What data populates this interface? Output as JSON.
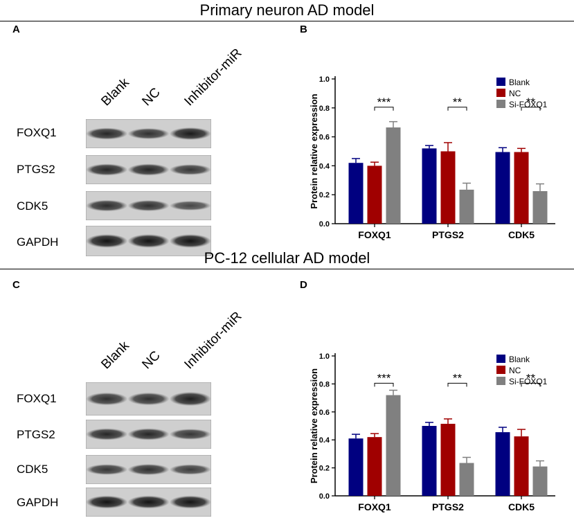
{
  "sections": [
    {
      "title": "Primary neuron AD model"
    },
    {
      "title": "PC-12 cellular AD model"
    }
  ],
  "panels": {
    "A": "A",
    "B": "B",
    "C": "C",
    "D": "D"
  },
  "blots": [
    {
      "lanes": [
        "Blank",
        "NC",
        "Inhibitor-miR"
      ],
      "rows": [
        "FOXQ1",
        "PTGS2",
        "CDK5",
        "GAPDH"
      ],
      "band_intensity": [
        [
          0.75,
          0.65,
          0.85
        ],
        [
          0.75,
          0.75,
          0.6
        ],
        [
          0.7,
          0.65,
          0.45
        ],
        [
          0.9,
          0.9,
          0.9
        ]
      ]
    },
    {
      "lanes": [
        "Blank",
        "NC",
        "Inhibitor-miR"
      ],
      "rows": [
        "FOXQ1",
        "PTGS2",
        "CDK5",
        "GAPDH"
      ],
      "band_intensity": [
        [
          0.65,
          0.65,
          0.8
        ],
        [
          0.75,
          0.75,
          0.6
        ],
        [
          0.6,
          0.65,
          0.55
        ],
        [
          0.9,
          0.9,
          0.9
        ]
      ]
    }
  ],
  "chart_data": [
    {
      "type": "bar",
      "categories": [
        "FOXQ1",
        "PTGS2",
        "CDK5"
      ],
      "series": [
        {
          "name": "Blank",
          "values": [
            0.42,
            0.52,
            0.495
          ],
          "errors": [
            0.03,
            0.02,
            0.03
          ],
          "color": "#000080"
        },
        {
          "name": "NC",
          "values": [
            0.4,
            0.5,
            0.495
          ],
          "errors": [
            0.025,
            0.06,
            0.025
          ],
          "color": "#a00000"
        },
        {
          "name": "Si-FOXQ1",
          "values": [
            0.665,
            0.235,
            0.225
          ],
          "errors": [
            0.04,
            0.045,
            0.05
          ],
          "color": "#808080"
        }
      ],
      "significance": [
        {
          "category": "FOXQ1",
          "label": "***"
        },
        {
          "category": "PTGS2",
          "label": "**"
        },
        {
          "category": "CDK5",
          "label": "**"
        }
      ],
      "xlabel": "",
      "ylabel": "Protein relative expression",
      "ylim": [
        0,
        1.0
      ],
      "yticks": [
        "0.0",
        "0.2",
        "0.4",
        "0.6",
        "0.8",
        "1.0"
      ],
      "legend_position": "top-right"
    },
    {
      "type": "bar",
      "categories": [
        "FOXQ1",
        "PTGS2",
        "CDK5"
      ],
      "series": [
        {
          "name": "Blank",
          "values": [
            0.41,
            0.5,
            0.455
          ],
          "errors": [
            0.03,
            0.025,
            0.035
          ],
          "color": "#000080"
        },
        {
          "name": "NC",
          "values": [
            0.42,
            0.515,
            0.425
          ],
          "errors": [
            0.025,
            0.035,
            0.05
          ],
          "color": "#a00000"
        },
        {
          "name": "Si-FOXQ1",
          "values": [
            0.72,
            0.235,
            0.21
          ],
          "errors": [
            0.035,
            0.04,
            0.04
          ],
          "color": "#808080"
        }
      ],
      "significance": [
        {
          "category": "FOXQ1",
          "label": "***"
        },
        {
          "category": "PTGS2",
          "label": "**"
        },
        {
          "category": "CDK5",
          "label": "**"
        }
      ],
      "xlabel": "",
      "ylabel": "Protein relative expression",
      "ylim": [
        0,
        1.0
      ],
      "yticks": [
        "0.0",
        "0.2",
        "0.4",
        "0.6",
        "0.8",
        "1.0"
      ],
      "legend_position": "top-right"
    }
  ]
}
